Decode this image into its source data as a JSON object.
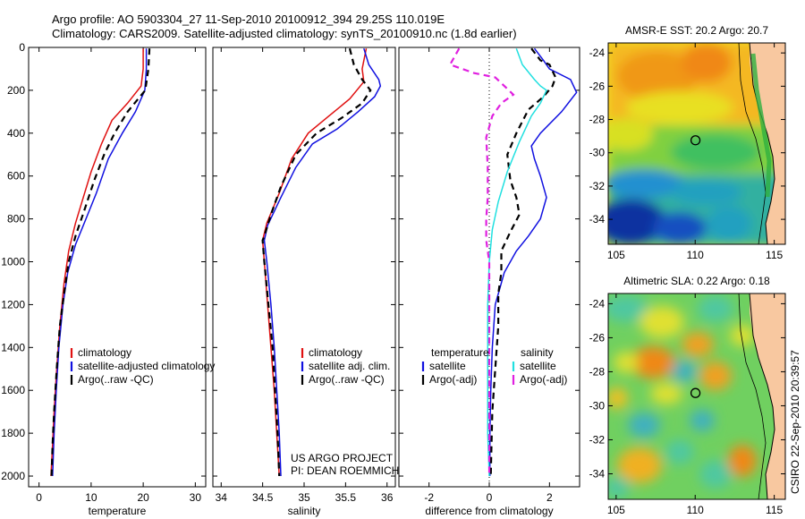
{
  "header": {
    "line1": "Argo profile: AO 5903304_27 11-Sep-2010 20100912_394 29.25S 110.019E",
    "line2": "Climatology: CARS2009. Satellite-adjusted climatology: synTS_20100910.nc (1.8d earlier)"
  },
  "colors": {
    "climatology": "#e01010",
    "satellite": "#1010e0",
    "argo": "#000000",
    "sal_satellite": "#20e0e0",
    "sal_argo": "#e020e0",
    "land": "#f8c8a0"
  },
  "chart_data": [
    {
      "type": "line",
      "panel": "temperature",
      "xlabel": "temperature",
      "xlim": [
        -2,
        32
      ],
      "ylim": [
        0,
        2050
      ],
      "y_reversed": true,
      "xticks": [
        0,
        10,
        20,
        30
      ],
      "yticks": [
        0,
        200,
        400,
        600,
        800,
        1000,
        1200,
        1400,
        1600,
        1800,
        2000
      ],
      "series": [
        {
          "name": "climatology",
          "color": "#e01010",
          "dash": "",
          "points": [
            [
              20,
              5
            ],
            [
              20,
              100
            ],
            [
              19.6,
              180
            ],
            [
              17,
              260
            ],
            [
              14,
              340
            ],
            [
              12,
              450
            ],
            [
              10,
              580
            ],
            [
              8.5,
              700
            ],
            [
              7,
              820
            ],
            [
              5.7,
              950
            ],
            [
              4.8,
              1100
            ],
            [
              4,
              1300
            ],
            [
              3.4,
              1500
            ],
            [
              2.9,
              1700
            ],
            [
              2.6,
              1850
            ],
            [
              2.3,
              2000
            ]
          ]
        },
        {
          "name": "satellite-adjusted climatology",
          "color": "#1010e0",
          "dash": "",
          "points": [
            [
              20.6,
              5
            ],
            [
              20.6,
              100
            ],
            [
              20.3,
              200
            ],
            [
              18.5,
              300
            ],
            [
              16,
              400
            ],
            [
              13.3,
              520
            ],
            [
              11,
              680
            ],
            [
              9,
              800
            ],
            [
              7,
              920
            ],
            [
              5.5,
              1050
            ],
            [
              4.6,
              1200
            ],
            [
              3.8,
              1400
            ],
            [
              3.3,
              1600
            ],
            [
              2.9,
              1800
            ],
            [
              2.6,
              2000
            ]
          ]
        },
        {
          "name": "Argo(..raw -QC)",
          "color": "#000000",
          "dash": "7,5",
          "points": [
            [
              21.2,
              5
            ],
            [
              21,
              100
            ],
            [
              20.4,
              200
            ],
            [
              17,
              300
            ],
            [
              14.5,
              400
            ],
            [
              12.5,
              500
            ],
            [
              10.6,
              620
            ],
            [
              8.7,
              760
            ],
            [
              7,
              880
            ],
            [
              5.7,
              1000
            ],
            [
              4.8,
              1150
            ],
            [
              4,
              1300
            ],
            [
              3.4,
              1500
            ],
            [
              2.9,
              1700
            ],
            [
              2.6,
              1850
            ],
            [
              2.4,
              2000
            ]
          ]
        }
      ],
      "legend": [
        "climatology",
        "satellite-adjusted climatology",
        "Argo(..raw -QC)"
      ]
    },
    {
      "type": "line",
      "panel": "salinity",
      "xlabel": "salinity",
      "xlim": [
        33.9,
        36.1
      ],
      "ylim": [
        0,
        2050
      ],
      "y_reversed": true,
      "xticks": [
        34,
        34.5,
        35,
        35.5,
        36
      ],
      "yticks": [
        0,
        200,
        400,
        600,
        800,
        1000,
        1200,
        1400,
        1600,
        1800,
        2000
      ],
      "series": [
        {
          "name": "climatology",
          "color": "#e01010",
          "dash": "",
          "points": [
            [
              35.75,
              5
            ],
            [
              35.7,
              100
            ],
            [
              35.72,
              160
            ],
            [
              35.55,
              240
            ],
            [
              35.3,
              320
            ],
            [
              35.05,
              400
            ],
            [
              34.85,
              520
            ],
            [
              34.7,
              680
            ],
            [
              34.55,
              820
            ],
            [
              34.5,
              900
            ],
            [
              34.52,
              1000
            ],
            [
              34.56,
              1200
            ],
            [
              34.6,
              1400
            ],
            [
              34.64,
              1600
            ],
            [
              34.67,
              1800
            ],
            [
              34.7,
              2000
            ]
          ]
        },
        {
          "name": "satellite adj. clim.",
          "color": "#1010e0",
          "dash": "",
          "points": [
            [
              35.72,
              5
            ],
            [
              35.78,
              80
            ],
            [
              35.9,
              150
            ],
            [
              35.92,
              180
            ],
            [
              35.85,
              230
            ],
            [
              35.65,
              300
            ],
            [
              35.4,
              380
            ],
            [
              35.1,
              450
            ],
            [
              34.9,
              560
            ],
            [
              34.72,
              700
            ],
            [
              34.56,
              830
            ],
            [
              34.52,
              900
            ],
            [
              34.55,
              1000
            ],
            [
              34.6,
              1200
            ],
            [
              34.64,
              1400
            ],
            [
              34.67,
              1600
            ],
            [
              34.7,
              1800
            ],
            [
              34.72,
              2000
            ]
          ]
        },
        {
          "name": "Argo(..raw -QC)",
          "color": "#000000",
          "dash": "7,5",
          "points": [
            [
              35.55,
              5
            ],
            [
              35.6,
              80
            ],
            [
              35.7,
              150
            ],
            [
              35.8,
              200
            ],
            [
              35.7,
              260
            ],
            [
              35.45,
              330
            ],
            [
              35.15,
              400
            ],
            [
              34.9,
              500
            ],
            [
              34.72,
              650
            ],
            [
              34.6,
              780
            ],
            [
              34.52,
              880
            ],
            [
              34.5,
              900
            ],
            [
              34.52,
              1000
            ],
            [
              34.57,
              1200
            ],
            [
              34.62,
              1400
            ],
            [
              34.65,
              1600
            ],
            [
              34.68,
              1800
            ],
            [
              34.7,
              2000
            ]
          ]
        }
      ],
      "legend": [
        "climatology",
        "satellite adj. clim.",
        "Argo(..raw -QC)"
      ],
      "credits": [
        "US ARGO PROJECT",
        "PI: DEAN ROEMMICH"
      ]
    },
    {
      "type": "line",
      "panel": "difference",
      "xlabel": "difference from climatology",
      "xlim": [
        -3,
        3
      ],
      "ylim": [
        0,
        2050
      ],
      "y_reversed": true,
      "xticks": [
        -2,
        0,
        2
      ],
      "yticks": [
        0,
        200,
        400,
        600,
        800,
        1000,
        1200,
        1400,
        1600,
        1800,
        2000
      ],
      "zero_line": true,
      "series": [
        {
          "name": "temperature satellite",
          "color": "#1010e0",
          "dash": "",
          "points": [
            [
              1.5,
              5
            ],
            [
              1.8,
              60
            ],
            [
              2.0,
              100
            ],
            [
              2.7,
              150
            ],
            [
              2.9,
              210
            ],
            [
              2.4,
              300
            ],
            [
              1.7,
              400
            ],
            [
              1.4,
              460
            ],
            [
              1.5,
              520
            ],
            [
              1.7,
              600
            ],
            [
              1.9,
              700
            ],
            [
              1.7,
              800
            ],
            [
              1.3,
              880
            ],
            [
              0.9,
              950
            ],
            [
              0.5,
              1050
            ],
            [
              0.2,
              1200
            ],
            [
              0.1,
              1400
            ],
            [
              0.05,
              1600
            ],
            [
              0.02,
              1800
            ],
            [
              0.02,
              2000
            ]
          ]
        },
        {
          "name": "temperature Argo(-adj)",
          "color": "#000000",
          "dash": "7,5",
          "points": [
            [
              1.4,
              5
            ],
            [
              1.7,
              60
            ],
            [
              2.0,
              80
            ],
            [
              2.2,
              140
            ],
            [
              2.1,
              180
            ],
            [
              1.8,
              230
            ],
            [
              1.3,
              290
            ],
            [
              0.9,
              400
            ],
            [
              0.6,
              500
            ],
            [
              0.7,
              620
            ],
            [
              0.9,
              700
            ],
            [
              1.0,
              780
            ],
            [
              0.7,
              860
            ],
            [
              0.4,
              950
            ],
            [
              0.4,
              1050
            ],
            [
              0.3,
              1150
            ],
            [
              0.3,
              1300
            ],
            [
              0.2,
              1500
            ],
            [
              0.1,
              1700
            ],
            [
              0.05,
              2000
            ]
          ]
        },
        {
          "name": "salinity satellite",
          "color": "#20e0e0",
          "dash": "",
          "points": [
            [
              0.9,
              5
            ],
            [
              1.1,
              80
            ],
            [
              1.5,
              150
            ],
            [
              1.7,
              180
            ],
            [
              1.9,
              200
            ],
            [
              1.7,
              260
            ],
            [
              1.4,
              320
            ],
            [
              1.0,
              440
            ],
            [
              0.6,
              580
            ],
            [
              0.3,
              720
            ],
            [
              0.1,
              850
            ],
            [
              0.0,
              1000
            ],
            [
              -0.05,
              1200
            ],
            [
              -0.05,
              1500
            ],
            [
              -0.05,
              1800
            ],
            [
              0,
              2000
            ]
          ]
        },
        {
          "name": "salinity Argo(-adj)",
          "color": "#e020e0",
          "dash": "7,5",
          "points": [
            [
              -1.0,
              5
            ],
            [
              -1.3,
              80
            ],
            [
              -0.9,
              100
            ],
            [
              -0.5,
              120
            ],
            [
              0.2,
              140
            ],
            [
              0.5,
              180
            ],
            [
              0.8,
              220
            ],
            [
              0.4,
              260
            ],
            [
              0.1,
              320
            ],
            [
              -0.1,
              420
            ],
            [
              -0.05,
              560
            ],
            [
              -0.05,
              700
            ],
            [
              -0.1,
              800
            ],
            [
              -0.1,
              900
            ],
            [
              0.0,
              1000
            ],
            [
              0.0,
              1200
            ],
            [
              0.0,
              1500
            ],
            [
              0.0,
              2000
            ]
          ]
        }
      ],
      "legend": {
        "left_heading": "temperature",
        "right_heading": "salinity",
        "left": [
          "satellite",
          "Argo(-adj)"
        ],
        "right": [
          "satellite",
          "Argo(-adj)"
        ]
      }
    },
    {
      "type": "heatmap",
      "panel": "sst_map",
      "title": "AMSR-E SST: 20.2 Argo: 20.7",
      "xlim": [
        104.5,
        115.7
      ],
      "ylim": [
        -35.5,
        -23.4
      ],
      "xticks": [
        105,
        110,
        115
      ],
      "yticks": [
        -24,
        -26,
        -28,
        -30,
        -32,
        -34
      ],
      "marker": [
        110.019,
        -29.25
      ]
    },
    {
      "type": "heatmap",
      "panel": "sla_map",
      "title": "Altimetric SLA: 0.22 Argo: 0.18",
      "xlim": [
        104.5,
        115.7
      ],
      "ylim": [
        -35.5,
        -23.4
      ],
      "xticks": [
        105,
        110,
        115
      ],
      "yticks": [
        -24,
        -26,
        -28,
        -30,
        -32,
        -34
      ],
      "marker": [
        110.019,
        -29.25
      ]
    }
  ],
  "footer": {
    "stamp": "CSIRO 22-Sep-2010 20:39:57"
  }
}
